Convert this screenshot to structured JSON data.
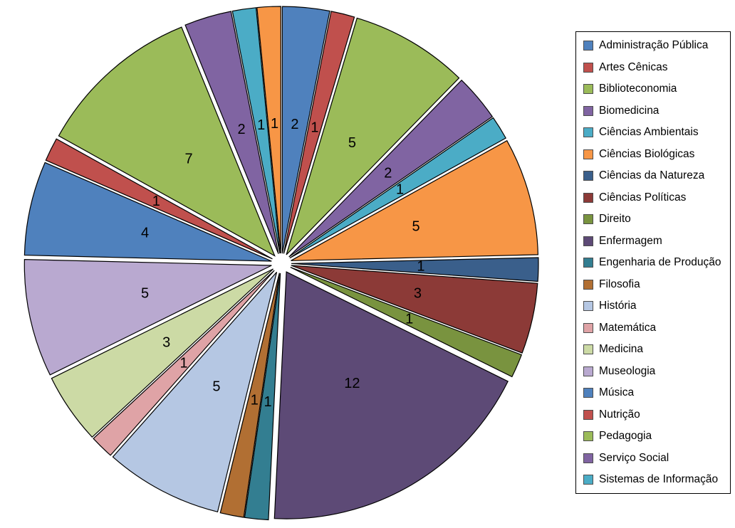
{
  "chart_data": {
    "type": "pie",
    "title": "",
    "exploded": true,
    "start_angle_deg": 0,
    "direction": "clockwise",
    "total": 65,
    "background_color": "#FFFFFF",
    "slice_border_color": "#000000",
    "label_color": "#000000",
    "legend_position": "right",
    "legend_border_color": "#000000",
    "slices": [
      {
        "label": "Administração Pública",
        "value": 2,
        "color": "#4F81BD"
      },
      {
        "label": "Artes Cênicas",
        "value": 1,
        "color": "#C0504D"
      },
      {
        "label": "Biblioteconomia",
        "value": 5,
        "color": "#9BBB59"
      },
      {
        "label": "Biomedicina",
        "value": 2,
        "color": "#8064A2"
      },
      {
        "label": "Ciências Ambientais",
        "value": 1,
        "color": "#4BACC6"
      },
      {
        "label": "Ciências Biológicas",
        "value": 5,
        "color": "#F79646"
      },
      {
        "label": "Ciências da Natureza",
        "value": 1,
        "color": "#3A5F8B"
      },
      {
        "label": "Ciências Políticas",
        "value": 3,
        "color": "#8C3A37"
      },
      {
        "label": "Direito",
        "value": 1,
        "color": "#79933F"
      },
      {
        "label": "Enfermagem",
        "value": 12,
        "color": "#5D4A76"
      },
      {
        "label": "Engenharia de Produção",
        "value": 1,
        "color": "#337E91"
      },
      {
        "label": "Filosofia",
        "value": 1,
        "color": "#B16F33"
      },
      {
        "label": "História",
        "value": 5,
        "color": "#B5C7E3"
      },
      {
        "label": "Matemática",
        "value": 1,
        "color": "#DFA3A6"
      },
      {
        "label": "Medicina",
        "value": 3,
        "color": "#CCDAA5"
      },
      {
        "label": "Museologia",
        "value": 5,
        "color": "#B9A9D0"
      },
      {
        "label": "Música",
        "value": 4,
        "color": "#4F81BD"
      },
      {
        "label": "Nutrição",
        "value": 1,
        "color": "#C0504D"
      },
      {
        "label": "Pedagogia",
        "value": 7,
        "color": "#9BBB59"
      },
      {
        "label": "Serviço Social",
        "value": 2,
        "color": "#8064A2"
      },
      {
        "label": "Sistemas de Informação",
        "value": 1,
        "color": "#4BACC6"
      },
      {
        "label": "",
        "value": 1,
        "color": "#F79646",
        "in_legend": false
      }
    ]
  }
}
